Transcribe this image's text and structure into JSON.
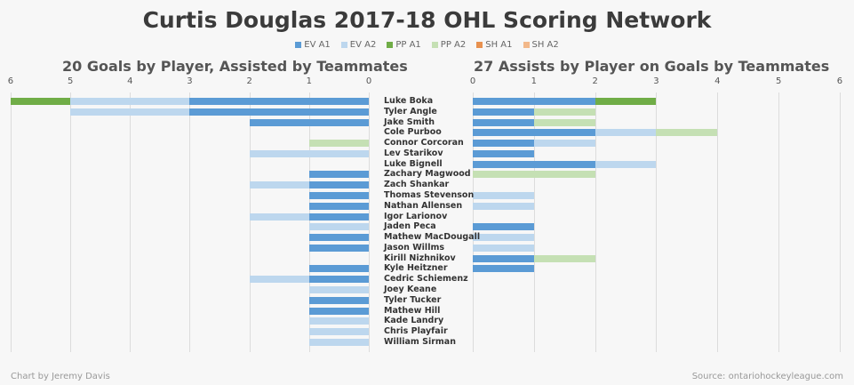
{
  "title": "Curtis Douglas 2017-18 OHL Scoring Network",
  "legend": [
    {
      "label": "EV A1",
      "color": "#5b9bd5"
    },
    {
      "label": "EV A2",
      "color": "#bdd7ee"
    },
    {
      "label": "PP A1",
      "color": "#70ad47"
    },
    {
      "label": "PP A2",
      "color": "#c5e0b4"
    },
    {
      "label": "SH A1",
      "color": "#e8914f"
    },
    {
      "label": "SH A2",
      "color": "#f2b88a"
    }
  ],
  "footer": {
    "credit": "Chart by Jeremy Davis",
    "source": "Source: ontariohockeyleague.com"
  },
  "chart_data": [
    {
      "type": "bar",
      "orientation": "horizontal-stacked",
      "direction": "leftward",
      "title": "20 Goals by Player, Assisted by Teammates",
      "xlim": [
        0,
        6
      ],
      "ticks": [
        "0",
        "1",
        "2",
        "3",
        "4",
        "5",
        "6"
      ],
      "grid": true,
      "series_order": [
        "EV A1",
        "EV A2",
        "PP A1",
        "PP A2",
        "SH A1",
        "SH A2"
      ],
      "values": [
        [
          3,
          2,
          1,
          0,
          0,
          0
        ],
        [
          3,
          2,
          0,
          0,
          0,
          0
        ],
        [
          2,
          0,
          0,
          0,
          0,
          0
        ],
        [
          0,
          0,
          0,
          0,
          0,
          0
        ],
        [
          0,
          0,
          0,
          1,
          0,
          0
        ],
        [
          0,
          2,
          0,
          0,
          0,
          0
        ],
        [
          0,
          0,
          0,
          0,
          0,
          0
        ],
        [
          1,
          0,
          0,
          0,
          0,
          0
        ],
        [
          1,
          1,
          0,
          0,
          0,
          0
        ],
        [
          1,
          0,
          0,
          0,
          0,
          0
        ],
        [
          1,
          0,
          0,
          0,
          0,
          0
        ],
        [
          1,
          1,
          0,
          0,
          0,
          0
        ],
        [
          0,
          1,
          0,
          0,
          0,
          0
        ],
        [
          1,
          0,
          0,
          0,
          0,
          0
        ],
        [
          1,
          0,
          0,
          0,
          0,
          0
        ],
        [
          0,
          0,
          0,
          0,
          0,
          0
        ],
        [
          1,
          0,
          0,
          0,
          0,
          0
        ],
        [
          1,
          1,
          0,
          0,
          0,
          0
        ],
        [
          0,
          1,
          0,
          0,
          0,
          0
        ],
        [
          1,
          0,
          0,
          0,
          0,
          0
        ],
        [
          1,
          0,
          0,
          0,
          0,
          0
        ],
        [
          0,
          1,
          0,
          0,
          0,
          0
        ],
        [
          0,
          1,
          0,
          0,
          0,
          0
        ],
        [
          0,
          1,
          0,
          0,
          0,
          0
        ]
      ]
    },
    {
      "type": "bar",
      "orientation": "horizontal-stacked",
      "direction": "rightward",
      "title": "27 Assists by Player on Goals by Teammates",
      "xlim": [
        0,
        6
      ],
      "ticks": [
        "0",
        "1",
        "2",
        "3",
        "4",
        "5",
        "6"
      ],
      "grid": true,
      "series_order": [
        "EV A1",
        "EV A2",
        "PP A1",
        "PP A2",
        "SH A1",
        "SH A2"
      ],
      "values": [
        [
          2,
          0,
          1,
          0,
          0,
          0
        ],
        [
          1,
          0,
          0,
          1,
          0,
          0
        ],
        [
          1,
          0,
          0,
          1,
          0,
          0
        ],
        [
          2,
          1,
          0,
          1,
          0,
          0
        ],
        [
          1,
          1,
          0,
          0,
          0,
          0
        ],
        [
          1,
          0,
          0,
          0,
          0,
          0
        ],
        [
          2,
          1,
          0,
          0,
          0,
          0
        ],
        [
          0,
          0,
          0,
          2,
          0,
          0
        ],
        [
          0,
          0,
          0,
          0,
          0,
          0
        ],
        [
          0,
          1,
          0,
          0,
          0,
          0
        ],
        [
          0,
          1,
          0,
          0,
          0,
          0
        ],
        [
          0,
          0,
          0,
          0,
          0,
          0
        ],
        [
          1,
          0,
          0,
          0,
          0,
          0
        ],
        [
          0,
          1,
          0,
          0,
          0,
          0
        ],
        [
          0,
          1,
          0,
          0,
          0,
          0
        ],
        [
          1,
          0,
          0,
          1,
          0,
          0
        ],
        [
          1,
          0,
          0,
          0,
          0,
          0
        ],
        [
          0,
          0,
          0,
          0,
          0,
          0
        ],
        [
          0,
          0,
          0,
          0,
          0,
          0
        ],
        [
          0,
          0,
          0,
          0,
          0,
          0
        ],
        [
          0,
          0,
          0,
          0,
          0,
          0
        ],
        [
          0,
          0,
          0,
          0,
          0,
          0
        ],
        [
          0,
          0,
          0,
          0,
          0,
          0
        ],
        [
          0,
          0,
          0,
          0,
          0,
          0
        ]
      ]
    }
  ],
  "players": [
    "Luke Boka",
    "Tyler Angle",
    "Jake Smith",
    "Cole Purboo",
    "Connor Corcoran",
    "Lev Starikov",
    "Luke Bignell",
    "Zachary Magwood",
    "Zach Shankar",
    "Thomas Stevenson",
    "Nathan Allensen",
    "Igor Larionov",
    "Jaden Peca",
    "Mathew MacDougall",
    "Jason Willms",
    "Kirill Nizhnikov",
    "Kyle Heitzner",
    "Cedric Schiemenz",
    "Joey Keane",
    "Tyler Tucker",
    "Mathew Hill",
    "Kade Landry",
    "Chris Playfair",
    "William Sirman"
  ]
}
